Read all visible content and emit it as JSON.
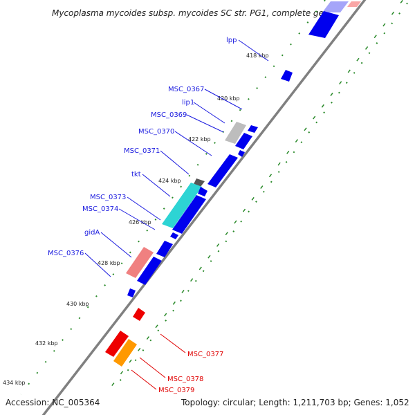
{
  "title": "Mycoplasma mycoides subsp. mycoides SC str. PG1, complete ge...",
  "footer": {
    "accession": "Accession: NC_005364",
    "summary": "Topology: circular; Length: 1,211,703 bp; Genes: 1,052"
  },
  "kbp_labels": [
    "418 kbp",
    "420 kbp",
    "422 kbp",
    "424 kbp",
    "426 kbp",
    "428 kbp",
    "430 kbp",
    "432 kbp",
    "434 kbp"
  ],
  "gene_labels_forward": [
    "lpp",
    "MSC_0367",
    "lip1",
    "MSC_0369",
    "MSC_0370",
    "MSC_0371",
    "tkt",
    "MSC_0373",
    "MSC_0374",
    "gidA",
    "MSC_0376"
  ],
  "gene_labels_reverse": [
    "MSC_0377",
    "MSC_0378",
    "MSC_0379"
  ],
  "colors": {
    "cds_blue": "#0000ee",
    "cyan_feature": "#2dd4d4",
    "pink_feature": "#f08080",
    "grey_feature": "#bdbdbd",
    "red_feature": "#ee0000",
    "orange_feature": "#ff9900",
    "label_blue": "#1a1adf",
    "label_red": "#e00000",
    "tick_green": "#2a8a2a",
    "backbone": "#808080"
  },
  "icons": [
    "forward-arrow-icon",
    "reverse-arrow-icon"
  ]
}
